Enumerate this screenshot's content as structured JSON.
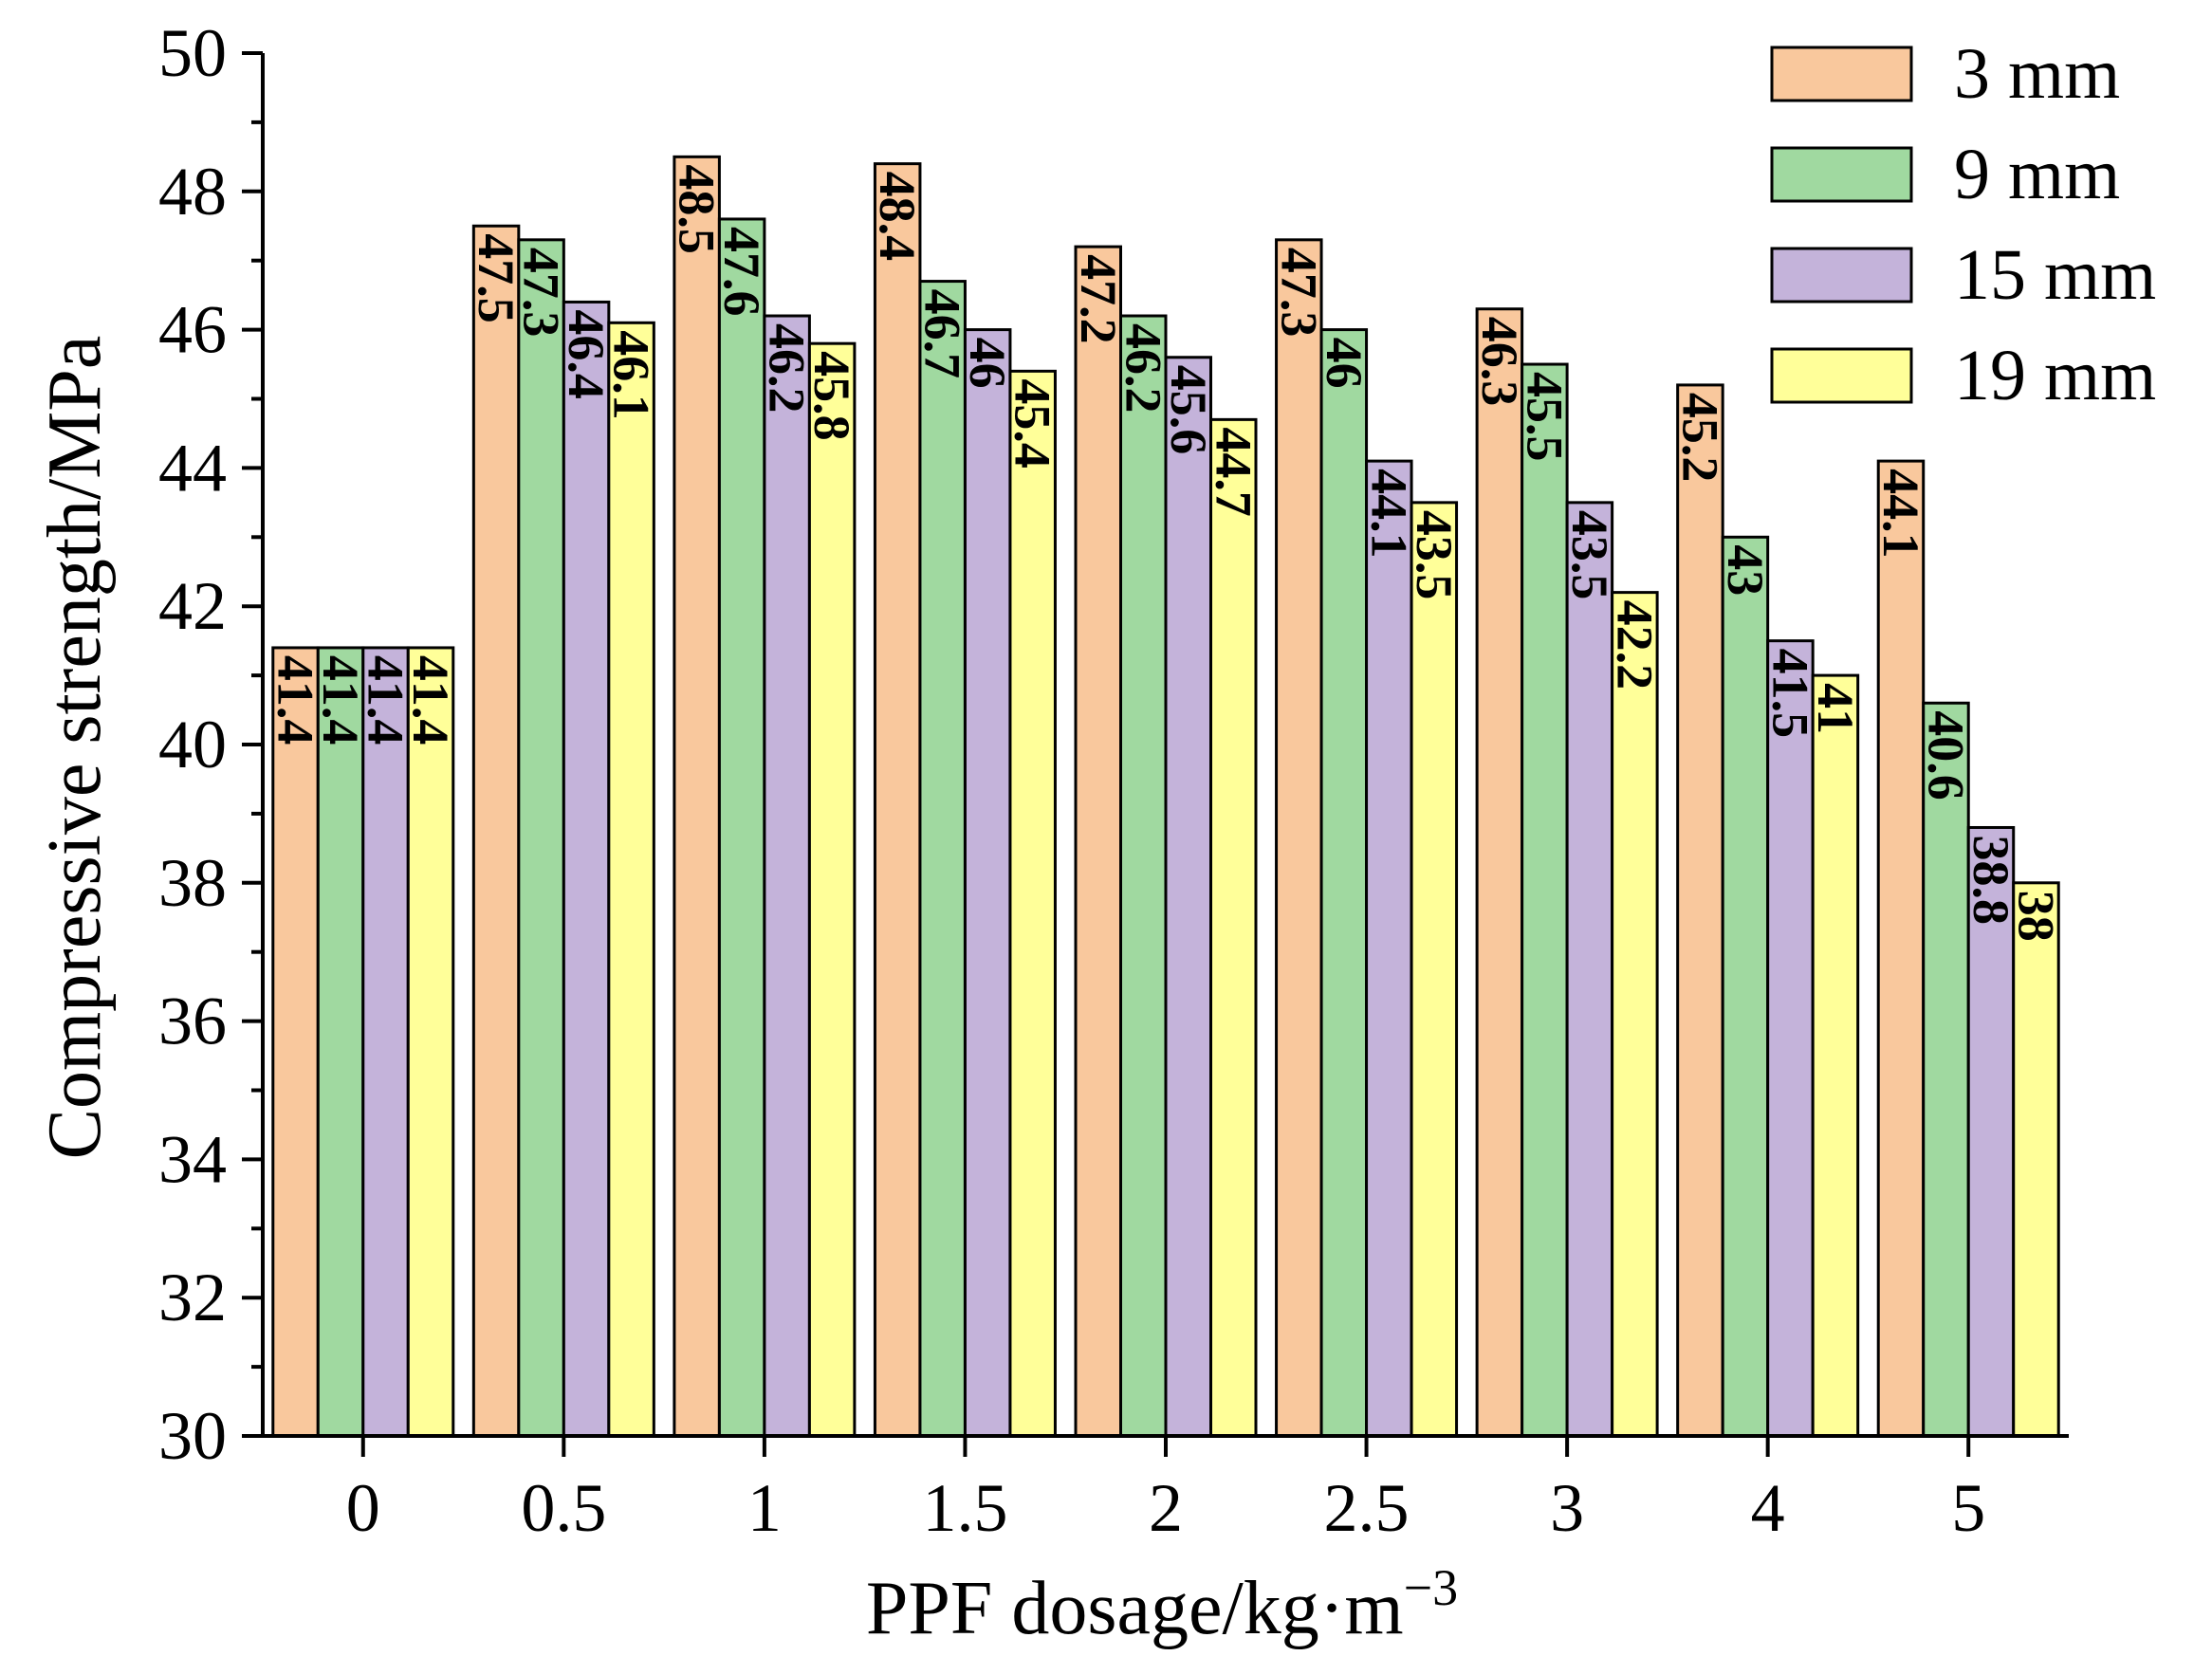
{
  "chart_data": {
    "type": "bar",
    "title": "",
    "xlabel": "PPF dosage/kg·m",
    "xlabel_superscript": "−3",
    "ylabel": "Compressive strength/MPa",
    "ylim": [
      30,
      50
    ],
    "y_major_ticks": [
      30,
      32,
      34,
      36,
      38,
      40,
      42,
      44,
      46,
      48,
      50
    ],
    "y_tick_labels": [
      "30",
      "32",
      "34",
      "36",
      "38",
      "40",
      "42",
      "44",
      "46",
      "48",
      "50"
    ],
    "categories": [
      "0",
      "0.5",
      "1",
      "1.5",
      "2",
      "2.5",
      "3",
      "4",
      "5"
    ],
    "legend_position": "top-right",
    "grid": false,
    "series": [
      {
        "name": "3 mm",
        "color": "#F9C89D",
        "values": [
          41.4,
          47.5,
          48.5,
          48.4,
          47.2,
          47.3,
          46.3,
          45.2,
          44.1
        ],
        "labels": [
          "41.4",
          "47.5",
          "48.5",
          "48.4",
          "47.2",
          "47.3",
          "46.3",
          "45.2",
          "44.1"
        ]
      },
      {
        "name": "9 mm",
        "color": "#A0D9A0",
        "values": [
          41.4,
          47.3,
          47.6,
          46.7,
          46.2,
          46,
          45.5,
          43,
          40.6
        ],
        "labels": [
          "41.4",
          "47.3",
          "47.6",
          "46.7",
          "46.2",
          "46",
          "45.5",
          "43",
          "40.6"
        ]
      },
      {
        "name": "15 mm",
        "color": "#C4B3DA",
        "values": [
          41.4,
          46.4,
          46.2,
          46,
          45.6,
          44.1,
          43.5,
          41.5,
          38.8
        ],
        "labels": [
          "41.4",
          "46.4",
          "46.2",
          "46",
          "45.6",
          "44.1",
          "43.5",
          "41.5",
          "38.8"
        ]
      },
      {
        "name": "19 mm",
        "color": "#FFFF99",
        "values": [
          41.4,
          46.1,
          45.8,
          45.4,
          44.7,
          43.5,
          42.2,
          41,
          38
        ],
        "labels": [
          "41.4",
          "46.1",
          "45.8",
          "45.4",
          "44.7",
          "43.5",
          "42.2",
          "41",
          "38"
        ]
      }
    ]
  }
}
